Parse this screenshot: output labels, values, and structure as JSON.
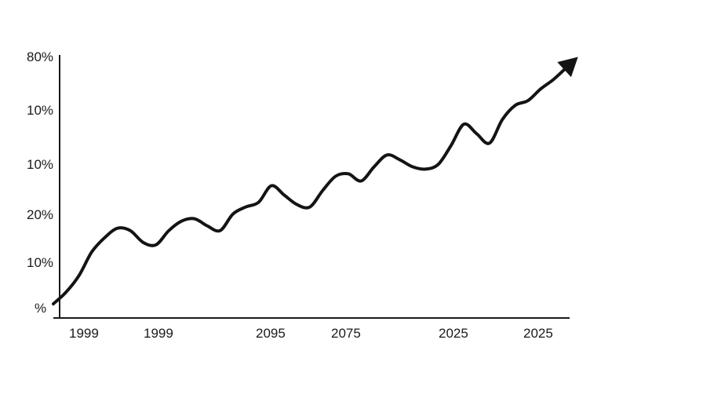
{
  "chart_data": {
    "type": "line",
    "title": "",
    "xlabel": "",
    "ylabel": "",
    "y_tick_labels": [
      "80%",
      "10%",
      "10%",
      "20%",
      "10%",
      "%"
    ],
    "x_tick_labels": [
      "1999",
      "1999",
      "2095",
      "2075",
      "2025",
      "2025"
    ],
    "grid": false,
    "legend": "none",
    "trend_arrow": true,
    "line_color": "#141414",
    "series": [
      {
        "values": [
          0.0,
          0.05,
          0.12,
          0.22,
          0.28,
          0.32,
          0.31,
          0.26,
          0.25,
          0.31,
          0.35,
          0.36,
          0.33,
          0.31,
          0.38,
          0.41,
          0.43,
          0.5,
          0.46,
          0.42,
          0.41,
          0.48,
          0.54,
          0.55,
          0.52,
          0.58,
          0.63,
          0.61,
          0.58,
          0.57,
          0.59,
          0.67,
          0.76,
          0.72,
          0.68,
          0.78,
          0.84,
          0.86,
          0.91,
          0.95,
          1.0
        ]
      }
    ]
  }
}
